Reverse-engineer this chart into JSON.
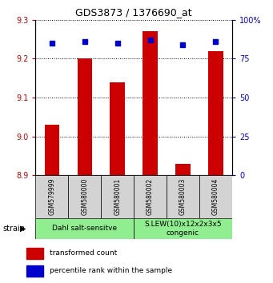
{
  "title": "GDS3873 / 1376690_at",
  "samples": [
    "GSM579999",
    "GSM580000",
    "GSM580001",
    "GSM580002",
    "GSM580003",
    "GSM580004"
  ],
  "bar_values": [
    9.03,
    9.2,
    9.14,
    9.27,
    8.93,
    9.22
  ],
  "bar_base": 8.9,
  "bar_color": "#cc0000",
  "percentile_values": [
    85,
    86,
    85,
    87,
    84,
    86
  ],
  "percentile_color": "#0000cc",
  "ylim_left": [
    8.9,
    9.3
  ],
  "ylim_right": [
    0,
    100
  ],
  "yticks_left": [
    8.9,
    9.0,
    9.1,
    9.2,
    9.3
  ],
  "yticks_right": [
    0,
    25,
    50,
    75,
    100
  ],
  "ytick_labels_right": [
    "0",
    "25",
    "50",
    "75",
    "100%"
  ],
  "group1_label": "Dahl salt-sensitve",
  "group2_label": "S.LEW(10)x12x2x3x5\ncongenic",
  "group1_indices": [
    0,
    1,
    2
  ],
  "group2_indices": [
    3,
    4,
    5
  ],
  "group_color": "#90ee90",
  "tick_label_color_left": "#cc0000",
  "tick_label_color_right": "#0000cc",
  "legend_bar_label": "transformed count",
  "legend_point_label": "percentile rank within the sample",
  "strain_label": "strain",
  "sample_bg_color": "#d3d3d3",
  "bar_width": 0.45
}
